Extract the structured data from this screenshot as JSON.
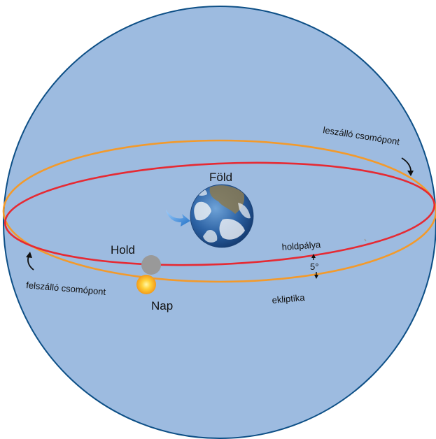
{
  "labels": {
    "earth": "Föld",
    "moon": "Hold",
    "sun": "Nap",
    "descending_node": "leszálló csomópont",
    "ascending_node": "felszálló csomópont",
    "moon_orbit": "holdpálya",
    "ecliptic": "ekliptika",
    "inclination": "5°"
  },
  "colors": {
    "celestial_sphere": "#9dbbe0",
    "sphere_outline": "#0d4f86",
    "ecliptic": "#f39a2b",
    "moon_orbit": "#e62a33",
    "moon": "#999999",
    "sun": "#f9b21f",
    "earth_ocean": "#2f6fb0",
    "earth_rotation_arrow": "#2f7fd0"
  }
}
